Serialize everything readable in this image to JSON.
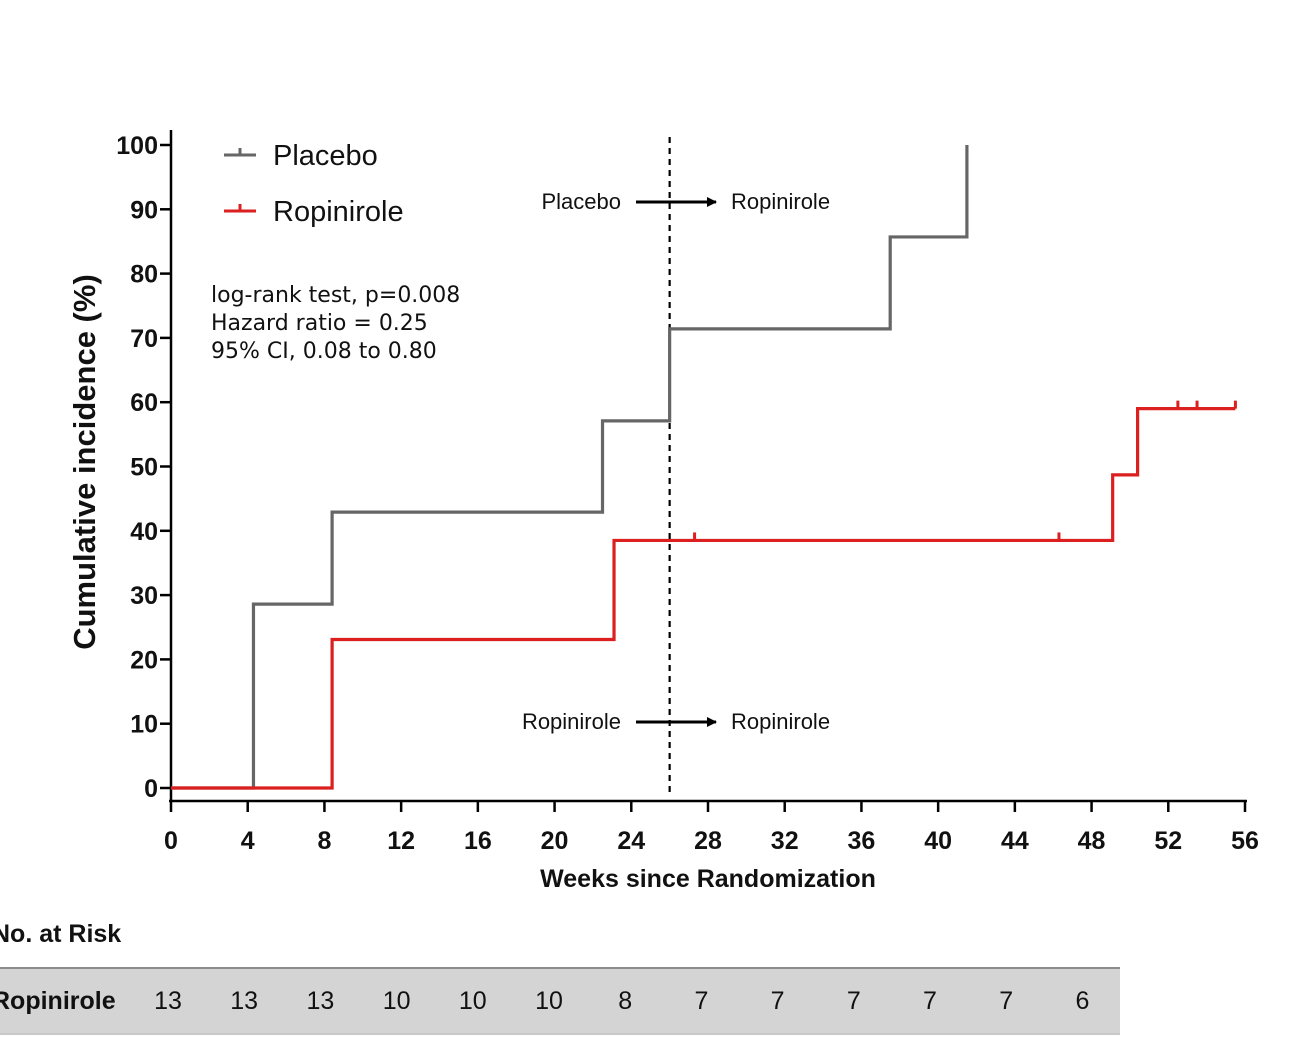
{
  "chart_data": {
    "type": "line",
    "step": true,
    "xlabel": "Weeks since Randomization",
    "ylabel": "Cumulative incidence (%)",
    "xlim": [
      0,
      56
    ],
    "ylim": [
      0,
      100
    ],
    "xticks": [
      0,
      4,
      8,
      12,
      16,
      20,
      24,
      28,
      32,
      36,
      40,
      44,
      48,
      52,
      56
    ],
    "yticks": [
      0,
      10,
      20,
      30,
      40,
      50,
      60,
      70,
      80,
      90,
      100
    ],
    "legend_position": "top-left",
    "series": [
      {
        "name": "Placebo",
        "color": "#666666",
        "steps": [
          [
            0,
            0
          ],
          [
            4.3,
            28.6
          ],
          [
            8.4,
            42.9
          ],
          [
            22.5,
            57.1
          ],
          [
            26,
            71.4
          ],
          [
            37.5,
            85.7
          ],
          [
            41.5,
            100
          ]
        ],
        "end_x": 41.5,
        "censored": []
      },
      {
        "name": "Ropinirole",
        "color": "#dc1f1f",
        "steps": [
          [
            0,
            0
          ],
          [
            8.4,
            23.1
          ],
          [
            23.1,
            38.5
          ],
          [
            49.1,
            48.7
          ],
          [
            50.4,
            59
          ]
        ],
        "end_x": 55.5,
        "censored": [
          [
            27.3,
            38.5
          ],
          [
            46.3,
            38.5
          ],
          [
            52.5,
            59
          ],
          [
            53.5,
            59
          ],
          [
            55.5,
            59
          ]
        ]
      }
    ],
    "reference_line": {
      "x": 26,
      "style": "dashed"
    },
    "annotations": {
      "stats": [
        "log-rank test, p=0.008",
        "Hazard ratio = 0.25",
        "95% CI, 0.08 to 0.80"
      ],
      "placebo_switch": {
        "from": "Placebo",
        "to": "Ropinirole"
      },
      "ropinirole_switch": {
        "from": "Ropinirole",
        "to": "Ropinirole"
      }
    }
  },
  "risk_table": {
    "title": "No. at Risk",
    "rows": [
      {
        "label": "Ropinirole",
        "values": [
          "13",
          "13",
          "13",
          "10",
          "10",
          "10",
          "8",
          "7",
          "7",
          "7",
          "7",
          "7",
          "6"
        ]
      }
    ]
  }
}
